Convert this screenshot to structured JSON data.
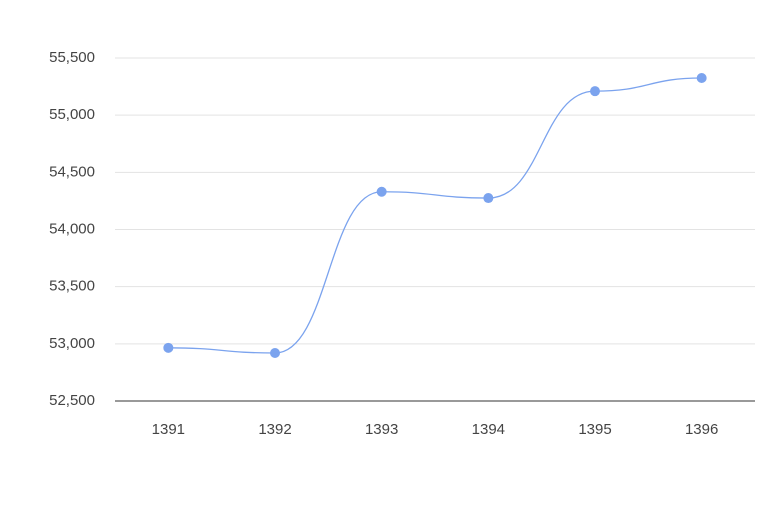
{
  "chart_data": {
    "type": "line",
    "categories": [
      "1391",
      "1392",
      "1393",
      "1394",
      "1395",
      "1396"
    ],
    "series": [
      {
        "color": "#7ba3ee",
        "values": [
          52965,
          52920,
          54330,
          54275,
          55210,
          55325
        ]
      }
    ],
    "ylim": [
      52500,
      55500
    ],
    "yticks": [
      {
        "value": 52500,
        "label": "52,500"
      },
      {
        "value": 53000,
        "label": "53,000"
      },
      {
        "value": 53500,
        "label": "53,500"
      },
      {
        "value": 54000,
        "label": "54,000"
      },
      {
        "value": 54500,
        "label": "54,500"
      },
      {
        "value": 55000,
        "label": "55,000"
      },
      {
        "value": 55500,
        "label": "55,500"
      }
    ],
    "grid": true,
    "smooth": true
  }
}
